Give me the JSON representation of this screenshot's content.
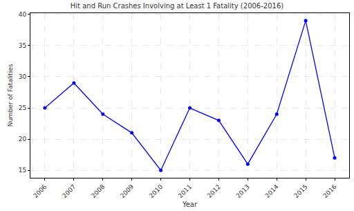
{
  "chart_data": {
    "type": "line",
    "title": "Hit and Run Crashes Involving at Least 1 Fatality (2006-2016)",
    "x_label": "Year",
    "y_label": "Number of Fatalities",
    "x": [
      2006,
      2007,
      2008,
      2009,
      2010,
      2011,
      2012,
      2013,
      2014,
      2015,
      2016
    ],
    "values": [
      25,
      29,
      24,
      21,
      15,
      25,
      23,
      16,
      24,
      39,
      17
    ],
    "color": "#0000ff",
    "marker": "circle",
    "line_style": "solid",
    "xlim": [
      2005.5,
      2016.5
    ],
    "xticks": [
      2006,
      2007,
      2008,
      2009,
      2010,
      2011,
      2012,
      2013,
      2014,
      2015,
      2016
    ],
    "ylim": [
      13.8,
      40.2
    ],
    "yticks": [
      15,
      20,
      25,
      30,
      35,
      40
    ],
    "grid": true
  }
}
